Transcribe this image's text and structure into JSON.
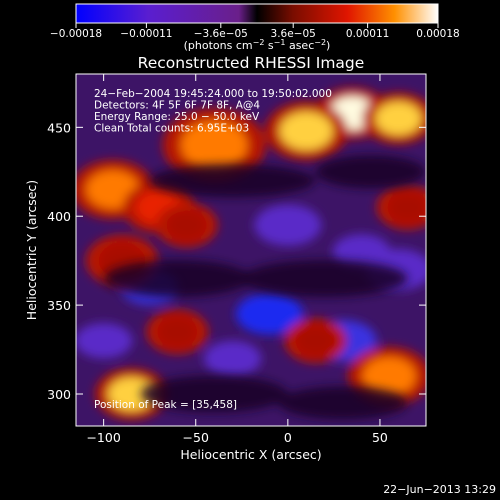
{
  "chart_data": {
    "type": "heatmap",
    "title": "Reconstructed RHESSI Image",
    "xlabel": "Heliocentric X (arcsec)",
    "ylabel": "Heliocentric Y (arcsec)",
    "xlim": [
      -115,
      75
    ],
    "ylim": [
      282,
      480
    ],
    "x_ticks": [
      -100,
      -50,
      0,
      50
    ],
    "y_ticks": [
      300,
      350,
      400,
      450
    ],
    "colorbar": {
      "min": -0.00018,
      "max": 0.00018,
      "ticks": [
        {
          "value": -0.00018,
          "label": "−0.00018"
        },
        {
          "value": -0.00011,
          "label": "−0.00011"
        },
        {
          "value": -3.6e-05,
          "label": "−3.6e−05"
        },
        {
          "value": 3.6e-05,
          "label": "3.6e−05"
        },
        {
          "value": 0.00011,
          "label": "0.00011"
        },
        {
          "value": 0.00018,
          "label": "0.00018"
        }
      ],
      "units_main": "(photons cm",
      "units_exp1": "−2",
      "units_mid": " s",
      "units_exp2": "−1",
      "units_end": " asec",
      "units_exp3": "−2",
      "units_close": ")"
    },
    "annotations": [
      "24−Feb−2004 19:45:24.000 to 19:50:02.000",
      "Detectors: 4F 5F 6F 7F 8F, A@4",
      "Energy Range: 25.0 − 50.0 keV",
      "Clean     Total counts: 6.95E+03"
    ],
    "peak_text": "Position of Peak = [35,458]",
    "peak": [
      35,
      458
    ],
    "hot_spots": [
      {
        "x": 35,
        "y": 458,
        "v": 1.0,
        "r": 14
      },
      {
        "x": -40,
        "y": 440,
        "v": 0.75,
        "r": 20
      },
      {
        "x": 10,
        "y": 448,
        "v": 0.85,
        "r": 16
      },
      {
        "x": 60,
        "y": 455,
        "v": 0.8,
        "r": 14
      },
      {
        "x": -95,
        "y": 415,
        "v": 0.7,
        "r": 16
      },
      {
        "x": -70,
        "y": 405,
        "v": 0.65,
        "r": 14
      },
      {
        "x": -55,
        "y": 395,
        "v": 0.55,
        "r": 12
      },
      {
        "x": -90,
        "y": 375,
        "v": 0.55,
        "r": 14
      },
      {
        "x": 55,
        "y": 310,
        "v": 0.75,
        "r": 16
      },
      {
        "x": -85,
        "y": 300,
        "v": 0.85,
        "r": 14
      },
      {
        "x": -60,
        "y": 335,
        "v": 0.5,
        "r": 12
      },
      {
        "x": 15,
        "y": 330,
        "v": 0.55,
        "r": 12
      },
      {
        "x": 65,
        "y": 405,
        "v": 0.5,
        "r": 12
      }
    ],
    "cold_spots": [
      {
        "x": -10,
        "y": 345,
        "v": -0.9,
        "r": 14
      },
      {
        "x": 30,
        "y": 330,
        "v": -0.8,
        "r": 14
      },
      {
        "x": -75,
        "y": 360,
        "v": -0.7,
        "r": 12
      },
      {
        "x": -30,
        "y": 320,
        "v": -0.6,
        "r": 12
      },
      {
        "x": 60,
        "y": 370,
        "v": -0.55,
        "r": 14
      },
      {
        "x": -100,
        "y": 330,
        "v": -0.55,
        "r": 12
      },
      {
        "x": 0,
        "y": 395,
        "v": -0.5,
        "r": 14
      },
      {
        "x": 40,
        "y": 380,
        "v": -0.6,
        "r": 12
      }
    ]
  },
  "footer": {
    "timestamp": "22−Jun−2013 13:29"
  }
}
